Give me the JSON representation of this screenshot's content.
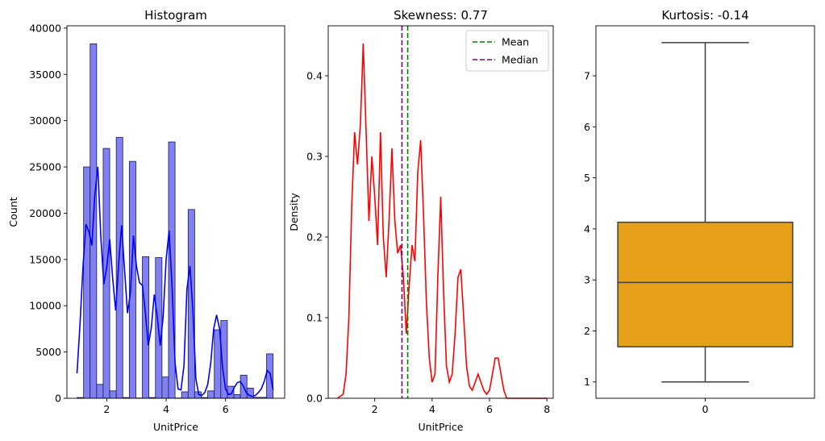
{
  "chart_data": [
    {
      "type": "bar",
      "title": "Histogram",
      "xlabel": "UnitPrice",
      "ylabel": "Count",
      "xlim": [
        0.66,
        7.99
      ],
      "ylim": [
        0,
        40250
      ],
      "xticks": [
        2,
        4,
        6
      ],
      "xtick_labels": [
        "2",
        "4",
        "6"
      ],
      "yticks": [
        0,
        5000,
        10000,
        15000,
        20000,
        25000,
        30000,
        35000,
        40000
      ],
      "ytick_labels": [
        "0",
        "5000",
        "10000",
        "15000",
        "20000",
        "25000",
        "30000",
        "35000",
        "40000"
      ],
      "bar_color": "#8080f2",
      "bar_edge_color": "#1a1a4d",
      "kde_color": "#0000ff",
      "bins": [
        {
          "x0": 1.0,
          "x1": 1.22,
          "value": 80
        },
        {
          "x0": 1.22,
          "x1": 1.44,
          "value": 25000
        },
        {
          "x0": 1.44,
          "x1": 1.66,
          "value": 38300
        },
        {
          "x0": 1.66,
          "x1": 1.88,
          "value": 1500
        },
        {
          "x0": 1.88,
          "x1": 2.1,
          "value": 27000
        },
        {
          "x0": 2.1,
          "x1": 2.32,
          "value": 800
        },
        {
          "x0": 2.32,
          "x1": 2.54,
          "value": 28200
        },
        {
          "x0": 2.54,
          "x1": 2.76,
          "value": 80
        },
        {
          "x0": 2.76,
          "x1": 2.98,
          "value": 25600
        },
        {
          "x0": 2.98,
          "x1": 3.2,
          "value": 30
        },
        {
          "x0": 3.2,
          "x1": 3.42,
          "value": 15300
        },
        {
          "x0": 3.42,
          "x1": 3.64,
          "value": 80
        },
        {
          "x0": 3.64,
          "x1": 3.86,
          "value": 15200
        },
        {
          "x0": 3.86,
          "x1": 4.08,
          "value": 2300
        },
        {
          "x0": 4.08,
          "x1": 4.3,
          "value": 27700
        },
        {
          "x0": 4.3,
          "x1": 4.52,
          "value": 30
        },
        {
          "x0": 4.52,
          "x1": 4.74,
          "value": 700
        },
        {
          "x0": 4.74,
          "x1": 4.96,
          "value": 20400
        },
        {
          "x0": 4.96,
          "x1": 5.18,
          "value": 700
        },
        {
          "x0": 5.18,
          "x1": 5.4,
          "value": 80
        },
        {
          "x0": 5.4,
          "x1": 5.62,
          "value": 800
        },
        {
          "x0": 5.62,
          "x1": 5.84,
          "value": 7400
        },
        {
          "x0": 5.84,
          "x1": 6.06,
          "value": 8400
        },
        {
          "x0": 6.06,
          "x1": 6.28,
          "value": 1300
        },
        {
          "x0": 6.28,
          "x1": 6.5,
          "value": 400
        },
        {
          "x0": 6.5,
          "x1": 6.72,
          "value": 2500
        },
        {
          "x0": 6.72,
          "x1": 6.94,
          "value": 1100
        },
        {
          "x0": 6.94,
          "x1": 7.16,
          "value": 100
        },
        {
          "x0": 7.16,
          "x1": 7.38,
          "value": 100
        },
        {
          "x0": 7.38,
          "x1": 7.6,
          "value": 4800
        }
      ],
      "kde": {
        "x": [
          1.0,
          1.1,
          1.2,
          1.3,
          1.4,
          1.5,
          1.6,
          1.7,
          1.8,
          1.9,
          2.0,
          2.1,
          2.2,
          2.3,
          2.4,
          2.5,
          2.6,
          2.7,
          2.8,
          2.9,
          3.0,
          3.1,
          3.2,
          3.3,
          3.4,
          3.5,
          3.6,
          3.7,
          3.8,
          3.9,
          4.0,
          4.1,
          4.2,
          4.3,
          4.4,
          4.5,
          4.6,
          4.7,
          4.8,
          4.9,
          5.0,
          5.1,
          5.2,
          5.3,
          5.4,
          5.5,
          5.6,
          5.7,
          5.8,
          5.9,
          6.0,
          6.1,
          6.2,
          6.3,
          6.4,
          6.5,
          6.6,
          6.7,
          6.8,
          6.9,
          7.0,
          7.1,
          7.2,
          7.3,
          7.4,
          7.5,
          7.6
        ],
        "y": [
          2700,
          8000,
          14200,
          18800,
          18000,
          16500,
          22000,
          25000,
          17500,
          12300,
          14200,
          17200,
          13000,
          9500,
          14500,
          18700,
          13800,
          9200,
          11500,
          17600,
          14300,
          12500,
          12200,
          9300,
          5700,
          7600,
          11200,
          8800,
          5700,
          8800,
          15000,
          18100,
          12000,
          3800,
          1000,
          900,
          3500,
          11800,
          14300,
          9500,
          2100,
          400,
          300,
          600,
          1500,
          3800,
          7500,
          9000,
          7500,
          3300,
          1000,
          400,
          500,
          1200,
          1700,
          1800,
          1300,
          600,
          300,
          200,
          300,
          600,
          1000,
          1800,
          3000,
          2700,
          900
        ]
      }
    },
    {
      "type": "line",
      "title": "Skewness: 0.77",
      "xlabel": "UnitPrice",
      "ylabel": "Density",
      "xlim": [
        0.38,
        8.22
      ],
      "ylim": [
        0,
        0.462
      ],
      "xticks": [
        2,
        4,
        6,
        8
      ],
      "xtick_labels": [
        "2",
        "4",
        "6",
        "8"
      ],
      "yticks": [
        0.0,
        0.1,
        0.2,
        0.3,
        0.4
      ],
      "ytick_labels": [
        "0.0",
        "0.1",
        "0.2",
        "0.3",
        "0.4"
      ],
      "line_color": "#ff0000",
      "density": {
        "x": [
          0.7,
          0.9,
          1.0,
          1.1,
          1.2,
          1.3,
          1.4,
          1.5,
          1.6,
          1.7,
          1.8,
          1.9,
          2.0,
          2.1,
          2.2,
          2.3,
          2.4,
          2.5,
          2.6,
          2.7,
          2.8,
          2.9,
          3.0,
          3.1,
          3.2,
          3.3,
          3.4,
          3.5,
          3.6,
          3.7,
          3.8,
          3.9,
          4.0,
          4.1,
          4.2,
          4.3,
          4.4,
          4.5,
          4.6,
          4.7,
          4.8,
          4.9,
          5.0,
          5.1,
          5.2,
          5.3,
          5.4,
          5.5,
          5.6,
          5.7,
          5.8,
          5.9,
          6.0,
          6.1,
          6.2,
          6.3,
          6.4,
          6.5,
          6.6,
          6.7,
          6.8,
          6.9,
          7.0,
          7.1,
          7.2,
          7.3,
          7.4,
          7.5,
          7.6,
          7.7,
          7.8,
          7.9,
          8.0
        ],
        "y": [
          0.0,
          0.005,
          0.03,
          0.1,
          0.24,
          0.33,
          0.29,
          0.34,
          0.44,
          0.33,
          0.22,
          0.3,
          0.25,
          0.19,
          0.33,
          0.2,
          0.15,
          0.22,
          0.31,
          0.22,
          0.18,
          0.19,
          0.15,
          0.08,
          0.14,
          0.19,
          0.17,
          0.28,
          0.32,
          0.23,
          0.12,
          0.05,
          0.02,
          0.03,
          0.15,
          0.25,
          0.13,
          0.04,
          0.02,
          0.03,
          0.08,
          0.15,
          0.16,
          0.1,
          0.04,
          0.015,
          0.01,
          0.02,
          0.03,
          0.02,
          0.01,
          0.005,
          0.01,
          0.03,
          0.05,
          0.05,
          0.03,
          0.01,
          0.0,
          0.0,
          0.0,
          0.0,
          0.0,
          0.0,
          0.0,
          0.0,
          0.0,
          0.0,
          0.0,
          0.0,
          0.0,
          0.0,
          0.0
        ]
      },
      "mean": 3.15,
      "median": 2.95,
      "mean_color": "#008000",
      "median_color": "#800080",
      "legend": {
        "placement": "upper right",
        "entries": [
          "Mean",
          "Median"
        ]
      }
    },
    {
      "type": "box",
      "title": "Kurtosis: -0.14",
      "xlim": [
        -0.5,
        0.5
      ],
      "ylim": [
        0.68,
        7.98
      ],
      "xticks": [
        0
      ],
      "xtick_labels": [
        "0"
      ],
      "yticks": [
        1,
        2,
        3,
        4,
        5,
        6,
        7
      ],
      "ytick_labels": [
        "1",
        "2",
        "3",
        "4",
        "5",
        "6",
        "7"
      ],
      "box_color": "#e69f19",
      "line_color": "#3f3f3f",
      "box": {
        "whislo": 1.0,
        "q1": 1.69,
        "median": 2.95,
        "q3": 4.13,
        "whishi": 7.65
      }
    }
  ]
}
